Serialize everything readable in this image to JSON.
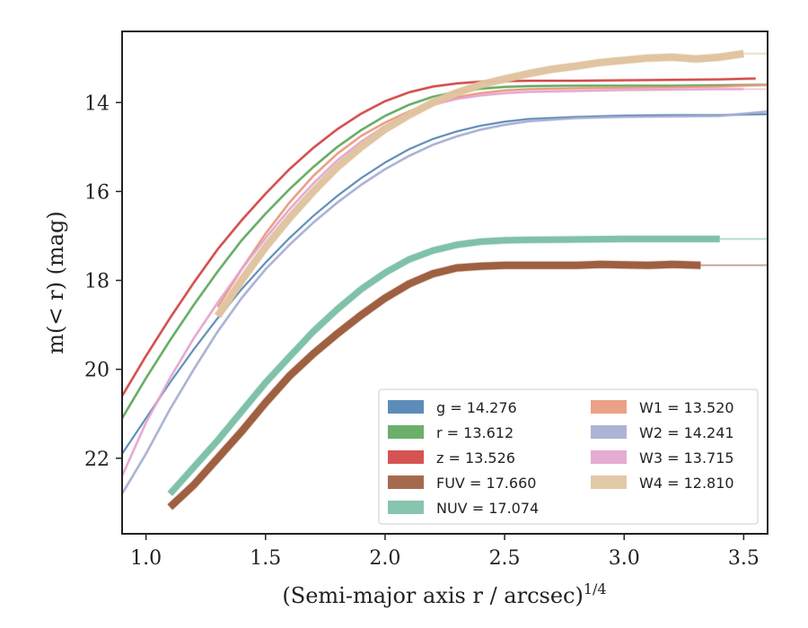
{
  "chart_data": {
    "type": "line",
    "xlabel": "(Semi-major axis r / arcsec)",
    "xlabel_superscript": "1/4",
    "ylabel": "m(< r) (mag)",
    "xlim": [
      0.9,
      3.6
    ],
    "ylim": [
      23.7,
      12.4
    ],
    "y_inverted": true,
    "xticks": [
      1.0,
      1.5,
      2.0,
      2.5,
      3.0,
      3.5
    ],
    "yticks": [
      14,
      16,
      18,
      20,
      22
    ],
    "grid": false,
    "legend_position": "lower-right",
    "legend_columns": 2,
    "series": [
      {
        "name": "g = 14.276",
        "color": "#4c7fb0",
        "band_width": 1.5,
        "faint_extension_to": null,
        "x": [
          0.9,
          1.0,
          1.1,
          1.2,
          1.3,
          1.4,
          1.5,
          1.6,
          1.7,
          1.8,
          1.9,
          2.0,
          2.1,
          2.2,
          2.3,
          2.4,
          2.5,
          2.6,
          2.8,
          3.0,
          3.2,
          3.4,
          3.6
        ],
        "y": [
          21.9,
          21.1,
          20.3,
          19.55,
          18.85,
          18.2,
          17.6,
          17.05,
          16.55,
          16.1,
          15.7,
          15.35,
          15.05,
          14.82,
          14.65,
          14.52,
          14.43,
          14.37,
          14.32,
          14.29,
          14.28,
          14.28,
          14.26
        ]
      },
      {
        "name": "r = 13.612",
        "color": "#5aa65a",
        "band_width": 2,
        "faint_extension_to": null,
        "x": [
          0.9,
          1.0,
          1.1,
          1.2,
          1.3,
          1.4,
          1.5,
          1.6,
          1.7,
          1.8,
          1.9,
          2.0,
          2.1,
          2.2,
          2.3,
          2.4,
          2.5,
          2.6,
          2.8,
          3.0,
          3.2,
          3.4,
          3.6
        ],
        "y": [
          21.1,
          20.2,
          19.35,
          18.55,
          17.8,
          17.1,
          16.5,
          15.95,
          15.45,
          15.0,
          14.62,
          14.3,
          14.05,
          13.87,
          13.76,
          13.69,
          13.65,
          13.63,
          13.62,
          13.62,
          13.62,
          13.61,
          13.6
        ]
      },
      {
        "name": "z = 13.526",
        "color": "#d0403f",
        "band_width": 2,
        "faint_extension_to": null,
        "x": [
          0.9,
          1.0,
          1.1,
          1.2,
          1.3,
          1.4,
          1.5,
          1.6,
          1.7,
          1.8,
          1.9,
          2.0,
          2.1,
          2.2,
          2.3,
          2.4,
          2.5,
          2.6,
          2.8,
          3.0,
          3.2,
          3.4,
          3.55
        ],
        "y": [
          20.6,
          19.7,
          18.85,
          18.05,
          17.3,
          16.65,
          16.05,
          15.5,
          15.02,
          14.6,
          14.25,
          13.97,
          13.77,
          13.64,
          13.57,
          13.53,
          13.52,
          13.51,
          13.51,
          13.5,
          13.49,
          13.48,
          13.46
        ]
      },
      {
        "name": "FUV = 17.660",
        "color": "#9b5a3a",
        "band_width": 8,
        "faint_extension_to": 3.6,
        "x": [
          1.1,
          1.2,
          1.3,
          1.4,
          1.5,
          1.6,
          1.7,
          1.8,
          1.9,
          2.0,
          2.1,
          2.2,
          2.3,
          2.4,
          2.5,
          2.6,
          2.7,
          2.8,
          2.9,
          3.0,
          3.1,
          3.2,
          3.32
        ],
        "y": [
          23.1,
          22.6,
          22.0,
          21.4,
          20.75,
          20.15,
          19.65,
          19.2,
          18.78,
          18.4,
          18.08,
          17.85,
          17.72,
          17.68,
          17.66,
          17.66,
          17.66,
          17.66,
          17.64,
          17.65,
          17.66,
          17.64,
          17.66
        ]
      },
      {
        "name": "NUV = 17.074",
        "color": "#7bbfa5",
        "band_width": 7,
        "faint_extension_to": 3.6,
        "x": [
          1.1,
          1.2,
          1.3,
          1.4,
          1.5,
          1.6,
          1.7,
          1.8,
          1.9,
          2.0,
          2.1,
          2.2,
          2.3,
          2.4,
          2.5,
          2.6,
          2.8,
          3.0,
          3.2,
          3.4
        ],
        "y": [
          22.8,
          22.2,
          21.6,
          20.95,
          20.3,
          19.72,
          19.15,
          18.65,
          18.2,
          17.83,
          17.53,
          17.33,
          17.2,
          17.13,
          17.1,
          17.09,
          17.08,
          17.07,
          17.07,
          17.07
        ]
      },
      {
        "name": "W1 = 13.520",
        "color": "#e9977a",
        "band_width": 2,
        "faint_extension_to": null,
        "x": [
          1.3,
          1.4,
          1.5,
          1.6,
          1.7,
          1.8,
          1.9,
          2.0,
          2.1,
          2.2,
          2.3,
          2.4,
          2.5,
          2.6,
          2.8,
          3.0,
          3.2,
          3.4,
          3.6
        ],
        "y": [
          18.6,
          17.75,
          16.95,
          16.25,
          15.65,
          15.15,
          14.75,
          14.45,
          14.2,
          14.02,
          13.88,
          13.79,
          13.73,
          13.7,
          13.68,
          13.67,
          13.66,
          13.64,
          13.6
        ]
      },
      {
        "name": "W2 = 14.241",
        "color": "#a3acd0",
        "band_width": 2,
        "faint_extension_to": null,
        "x": [
          0.9,
          1.0,
          1.1,
          1.2,
          1.3,
          1.4,
          1.5,
          1.6,
          1.7,
          1.8,
          1.9,
          2.0,
          2.1,
          2.2,
          2.3,
          2.4,
          2.5,
          2.6,
          2.8,
          3.0,
          3.2,
          3.4,
          3.6
        ],
        "y": [
          22.8,
          21.9,
          20.9,
          20.0,
          19.15,
          18.4,
          17.75,
          17.2,
          16.7,
          16.25,
          15.85,
          15.5,
          15.2,
          14.95,
          14.76,
          14.61,
          14.5,
          14.42,
          14.35,
          14.32,
          14.31,
          14.3,
          14.2
        ]
      },
      {
        "name": "W3 = 13.715",
        "color": "#e3a2cd",
        "band_width": 2,
        "faint_extension_to": 3.6,
        "x": [
          0.9,
          1.0,
          1.1,
          1.2,
          1.3,
          1.4,
          1.5,
          1.6,
          1.7,
          1.8,
          1.9,
          2.0,
          2.1,
          2.2,
          2.3,
          2.4,
          2.5,
          2.6,
          2.8,
          3.0,
          3.2,
          3.4,
          3.5
        ],
        "y": [
          22.4,
          21.2,
          20.2,
          19.3,
          18.5,
          17.75,
          17.05,
          16.4,
          15.82,
          15.3,
          14.88,
          14.53,
          14.25,
          14.05,
          13.92,
          13.84,
          13.79,
          13.76,
          13.74,
          13.72,
          13.71,
          13.7,
          13.7
        ]
      },
      {
        "name": "W4 = 12.810",
        "color": "#dfc39e",
        "band_width": 8,
        "faint_extension_to": 3.6,
        "x": [
          1.3,
          1.4,
          1.5,
          1.6,
          1.7,
          1.8,
          1.9,
          2.0,
          2.1,
          2.2,
          2.3,
          2.4,
          2.5,
          2.6,
          2.7,
          2.8,
          2.9,
          3.0,
          3.1,
          3.2,
          3.3,
          3.4,
          3.5
        ],
        "y": [
          18.8,
          18.0,
          17.25,
          16.6,
          16.0,
          15.45,
          15.0,
          14.6,
          14.28,
          14.0,
          13.78,
          13.6,
          13.47,
          13.35,
          13.25,
          13.18,
          13.1,
          13.05,
          13.0,
          12.98,
          13.02,
          12.98,
          12.9
        ]
      }
    ]
  }
}
